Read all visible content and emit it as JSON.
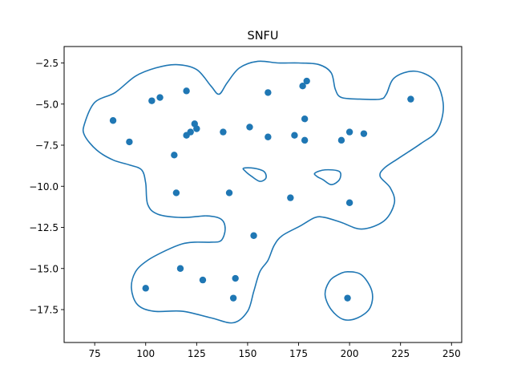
{
  "chart_data": {
    "type": "scatter",
    "title": "SNFU",
    "xlabel": "",
    "ylabel": "",
    "xlim": [
      60,
      255
    ],
    "ylim": [
      -19.5,
      -1.5
    ],
    "x_ticks": [
      75,
      100,
      125,
      150,
      175,
      200,
      225,
      250
    ],
    "y_ticks": [
      -2.5,
      -5.0,
      -7.5,
      -10.0,
      -12.5,
      -15.0,
      -17.5
    ],
    "grid": false,
    "legend": "none",
    "color": "#1f77b4",
    "points": [
      {
        "x": 84,
        "y": -6.0
      },
      {
        "x": 92,
        "y": -7.3
      },
      {
        "x": 103,
        "y": -4.8
      },
      {
        "x": 107,
        "y": -4.6
      },
      {
        "x": 114,
        "y": -8.1
      },
      {
        "x": 115,
        "y": -10.4
      },
      {
        "x": 120,
        "y": -4.2
      },
      {
        "x": 120,
        "y": -6.9
      },
      {
        "x": 122,
        "y": -6.7
      },
      {
        "x": 124,
        "y": -6.2
      },
      {
        "x": 125,
        "y": -6.5
      },
      {
        "x": 138,
        "y": -6.7
      },
      {
        "x": 141,
        "y": -10.4
      },
      {
        "x": 151,
        "y": -6.4
      },
      {
        "x": 160,
        "y": -4.3
      },
      {
        "x": 160,
        "y": -7.0
      },
      {
        "x": 171,
        "y": -10.7
      },
      {
        "x": 173,
        "y": -6.9
      },
      {
        "x": 177,
        "y": -3.9
      },
      {
        "x": 178,
        "y": -5.9
      },
      {
        "x": 178,
        "y": -7.2
      },
      {
        "x": 179,
        "y": -3.6
      },
      {
        "x": 196,
        "y": -7.2
      },
      {
        "x": 200,
        "y": -6.7
      },
      {
        "x": 207,
        "y": -6.8
      },
      {
        "x": 200,
        "y": -11.0
      },
      {
        "x": 230,
        "y": -4.7
      },
      {
        "x": 153,
        "y": -13.0
      },
      {
        "x": 117,
        "y": -15.0
      },
      {
        "x": 100,
        "y": -16.2
      },
      {
        "x": 128,
        "y": -15.7
      },
      {
        "x": 144,
        "y": -15.6
      },
      {
        "x": 143,
        "y": -16.8
      },
      {
        "x": 199,
        "y": -16.8
      }
    ],
    "contours": [
      [
        [
          70,
          -6.2
        ],
        [
          75,
          -4.9
        ],
        [
          85,
          -4.3
        ],
        [
          95,
          -3.3
        ],
        [
          105,
          -2.8
        ],
        [
          115,
          -2.6
        ],
        [
          125,
          -2.9
        ],
        [
          132,
          -3.9
        ],
        [
          136,
          -4.4
        ],
        [
          140,
          -3.7
        ],
        [
          146,
          -2.8
        ],
        [
          155,
          -2.4
        ],
        [
          165,
          -2.5
        ],
        [
          175,
          -2.5
        ],
        [
          185,
          -2.6
        ],
        [
          191,
          -3.1
        ],
        [
          193,
          -4.1
        ],
        [
          196,
          -4.6
        ],
        [
          205,
          -4.7
        ],
        [
          215,
          -4.7
        ],
        [
          218,
          -4.4
        ],
        [
          222,
          -3.4
        ],
        [
          232,
          -3.0
        ],
        [
          242,
          -3.6
        ],
        [
          246,
          -5.1
        ],
        [
          243,
          -6.6
        ],
        [
          235,
          -7.4
        ],
        [
          224,
          -8.3
        ],
        [
          217,
          -8.9
        ],
        [
          215,
          -9.4
        ],
        [
          220,
          -10.1
        ],
        [
          222,
          -11.0
        ],
        [
          217,
          -12.1
        ],
        [
          206,
          -12.6
        ],
        [
          196,
          -12.2
        ],
        [
          188,
          -11.9
        ],
        [
          183,
          -11.9
        ],
        [
          176,
          -12.4
        ],
        [
          167,
          -13.0
        ],
        [
          163,
          -13.6
        ],
        [
          160,
          -14.5
        ],
        [
          156,
          -15.2
        ],
        [
          153,
          -16.4
        ],
        [
          150,
          -17.6
        ],
        [
          143,
          -18.3
        ],
        [
          132,
          -18.0
        ],
        [
          118,
          -17.6
        ],
        [
          104,
          -17.6
        ],
        [
          96,
          -17.2
        ],
        [
          93,
          -16.2
        ],
        [
          95,
          -15.2
        ],
        [
          101,
          -14.5
        ],
        [
          110,
          -13.9
        ],
        [
          118,
          -13.5
        ],
        [
          124,
          -13.4
        ],
        [
          132,
          -13.4
        ],
        [
          137,
          -13.3
        ],
        [
          139,
          -12.6
        ],
        [
          137,
          -12.0
        ],
        [
          130,
          -11.8
        ],
        [
          118,
          -11.9
        ],
        [
          106,
          -11.7
        ],
        [
          101,
          -11.1
        ],
        [
          100,
          -9.8
        ],
        [
          98,
          -9.0
        ],
        [
          92,
          -8.7
        ],
        [
          84,
          -8.4
        ],
        [
          76,
          -7.8
        ],
        [
          70,
          -6.9
        ],
        [
          70,
          -6.2
        ]
      ],
      [
        [
          148,
          -8.9
        ],
        [
          153,
          -8.9
        ],
        [
          158,
          -9.1
        ],
        [
          159,
          -9.5
        ],
        [
          156,
          -9.7
        ],
        [
          152,
          -9.4
        ],
        [
          149,
          -9.1
        ],
        [
          148,
          -8.9
        ]
      ],
      [
        [
          183,
          -9.2
        ],
        [
          188,
          -9.0
        ],
        [
          195,
          -9.1
        ],
        [
          195,
          -9.6
        ],
        [
          191,
          -9.9
        ],
        [
          187,
          -9.6
        ],
        [
          184,
          -9.4
        ],
        [
          183,
          -9.2
        ]
      ],
      [
        [
          199,
          -15.2
        ],
        [
          206,
          -15.4
        ],
        [
          211,
          -16.4
        ],
        [
          210,
          -17.4
        ],
        [
          204,
          -18.0
        ],
        [
          197,
          -18.1
        ],
        [
          191,
          -17.5
        ],
        [
          188,
          -16.6
        ],
        [
          190,
          -15.8
        ],
        [
          194,
          -15.4
        ],
        [
          199,
          -15.2
        ]
      ]
    ]
  }
}
